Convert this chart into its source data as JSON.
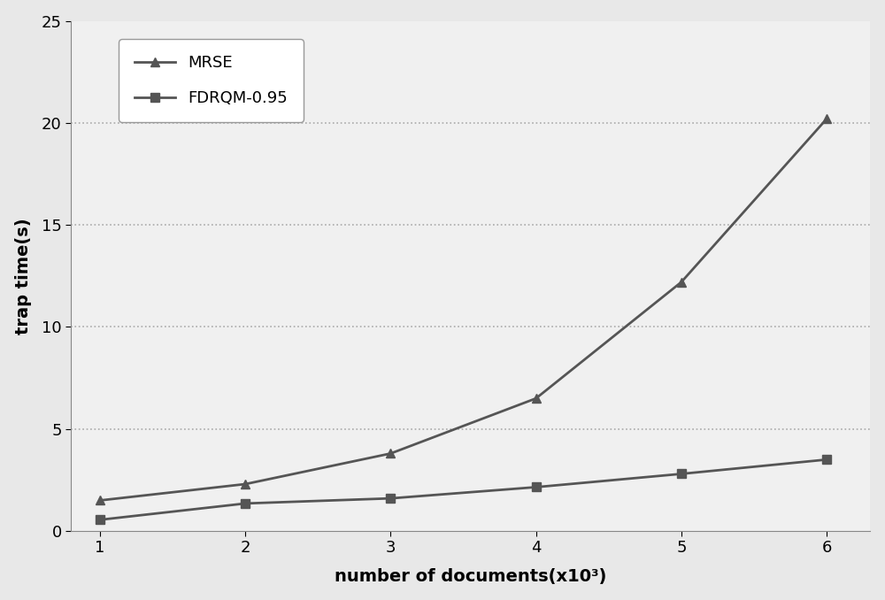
{
  "x": [
    1,
    2,
    3,
    4,
    5,
    6
  ],
  "mrse_y": [
    1.5,
    2.3,
    3.8,
    6.5,
    12.2,
    20.2
  ],
  "fdrqm_y": [
    0.55,
    1.35,
    1.6,
    2.15,
    2.8,
    3.5
  ],
  "xlabel": "number of documents(x10³)",
  "ylabel": "trap time(s)",
  "xlim": [
    0.8,
    6.3
  ],
  "ylim": [
    0,
    25
  ],
  "yticks": [
    0,
    5,
    10,
    15,
    20,
    25
  ],
  "xticks": [
    1,
    2,
    3,
    4,
    5,
    6
  ],
  "grid_yticks": [
    5,
    10,
    15,
    20
  ],
  "line_color": "#555555",
  "legend_labels": [
    "MRSE",
    "FDRQM-0.95"
  ],
  "mrse_marker": "^",
  "fdrqm_marker": "s",
  "linewidth": 2.0,
  "markersize": 7,
  "bg_color": "#e8e8e8",
  "plot_bg_color": "#f0f0f0",
  "grid_color": "#aaaaaa",
  "xlabel_fontsize": 14,
  "ylabel_fontsize": 14,
  "tick_fontsize": 13,
  "legend_fontsize": 13
}
